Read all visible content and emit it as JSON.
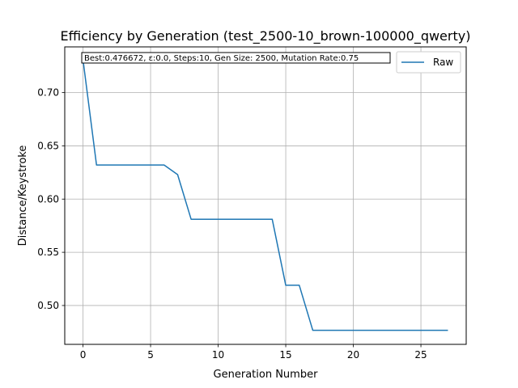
{
  "chart_data": {
    "type": "line",
    "title": "Efficiency by Generation (test_2500-10_brown-100000_qwerty)",
    "xlabel": "Generation Number",
    "ylabel": "Distance/Keystroke",
    "xlim": [
      -1.35,
      28.35
    ],
    "ylim": [
      0.4635,
      0.743
    ],
    "xticks": [
      0,
      5,
      10,
      15,
      20,
      25
    ],
    "yticks": [
      0.5,
      0.55,
      0.6,
      0.65,
      0.7
    ],
    "ytick_labels": [
      "0.50",
      "0.55",
      "0.60",
      "0.65",
      "0.70"
    ],
    "grid": true,
    "legend_position": "top-right",
    "annotation": "Best:0.476672, ε:0.0, Steps:10, Gen Size: 2500, Mutation Rate:0.75",
    "series": [
      {
        "name": "Raw",
        "color": "#1f77b4",
        "x": [
          0,
          1,
          2,
          3,
          4,
          5,
          6,
          7,
          8,
          9,
          10,
          11,
          12,
          13,
          14,
          15,
          16,
          17,
          18,
          19,
          20,
          21,
          22,
          23,
          24,
          25,
          26,
          27
        ],
        "y": [
          0.731,
          0.632,
          0.632,
          0.632,
          0.632,
          0.632,
          0.632,
          0.623,
          0.581,
          0.581,
          0.581,
          0.581,
          0.581,
          0.581,
          0.581,
          0.519,
          0.519,
          0.4767,
          0.4767,
          0.4767,
          0.4767,
          0.4767,
          0.4767,
          0.4767,
          0.4767,
          0.4767,
          0.4767,
          0.4767
        ]
      }
    ]
  }
}
